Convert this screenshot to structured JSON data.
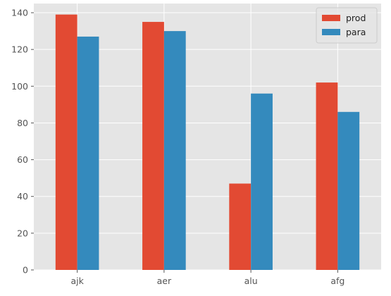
{
  "chart_data": {
    "type": "bar",
    "categories": [
      "ajk",
      "aer",
      "alu",
      "afg"
    ],
    "series": [
      {
        "name": "prod",
        "values": [
          139,
          135,
          47,
          102
        ],
        "color": "#E24A33"
      },
      {
        "name": "para",
        "values": [
          127,
          130,
          96,
          86
        ],
        "color": "#348ABD"
      }
    ],
    "title": "",
    "xlabel": "",
    "ylabel": "",
    "ylim": [
      0,
      145
    ],
    "yticks": [
      0,
      20,
      40,
      60,
      80,
      100,
      120,
      140
    ],
    "grid": true,
    "legend": "top-right",
    "style": {
      "plot_background": "#E5E5E5",
      "grid_color": "#FFFFFF",
      "tick_label_color": "#555555"
    }
  }
}
